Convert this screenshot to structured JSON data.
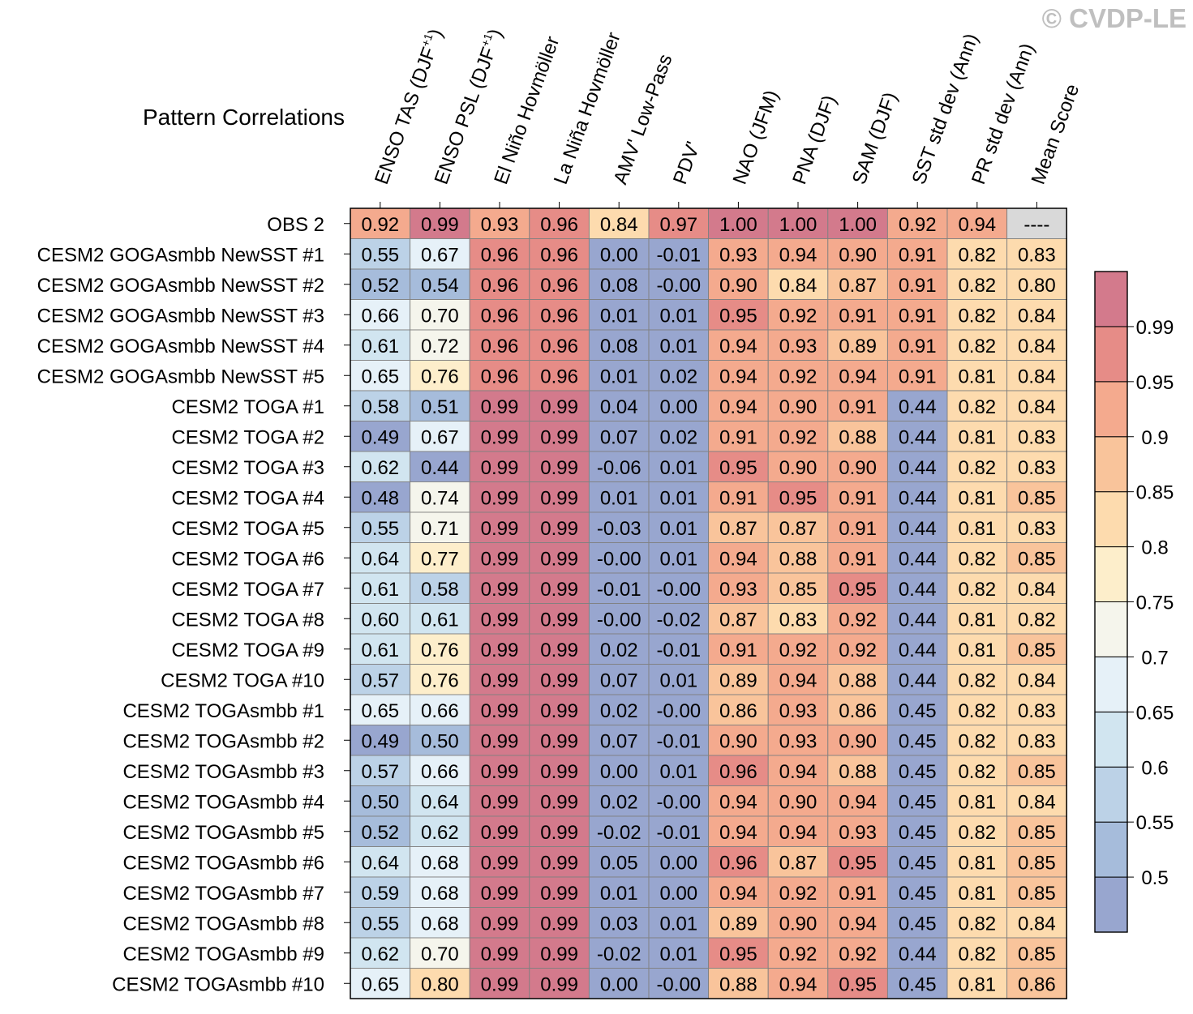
{
  "watermark": "© CVDP-LE",
  "chart_data": {
    "type": "heatmap",
    "title": "Pattern Correlations",
    "columns": [
      {
        "label": "ENSO TAS (DJF",
        "sup": "+1",
        "tail": ")"
      },
      {
        "label": "ENSO PSL (DJF",
        "sup": "+1",
        "tail": ")"
      },
      {
        "label": "El Niño Hovmöller"
      },
      {
        "label": "La Niña Hovmöller"
      },
      {
        "label": "AMV' Low-Pass"
      },
      {
        "label": "PDV'"
      },
      {
        "label": "NAO (JFM)"
      },
      {
        "label": "PNA (DJF)"
      },
      {
        "label": "SAM (DJF)"
      },
      {
        "label": "SST std dev (Ann)"
      },
      {
        "label": "PR std dev (Ann)"
      },
      {
        "label": "Mean Score"
      }
    ],
    "rows": [
      {
        "name": "OBS 2",
        "cells": [
          "0.92",
          "0.99",
          "0.93",
          "0.96",
          "0.84",
          "0.97",
          "1.00",
          "1.00",
          "1.00",
          "0.92",
          "0.94",
          "----"
        ]
      },
      {
        "name": "CESM2 GOGAsmbb NewSST #1",
        "cells": [
          "0.55",
          "0.67",
          "0.96",
          "0.96",
          "0.00",
          "-0.01",
          "0.93",
          "0.94",
          "0.90",
          "0.91",
          "0.82",
          "0.83"
        ]
      },
      {
        "name": "CESM2 GOGAsmbb NewSST #2",
        "cells": [
          "0.52",
          "0.54",
          "0.96",
          "0.96",
          "0.08",
          "-0.00",
          "0.90",
          "0.84",
          "0.87",
          "0.91",
          "0.82",
          "0.80"
        ]
      },
      {
        "name": "CESM2 GOGAsmbb NewSST #3",
        "cells": [
          "0.66",
          "0.70",
          "0.96",
          "0.96",
          "0.01",
          "0.01",
          "0.95",
          "0.92",
          "0.91",
          "0.91",
          "0.82",
          "0.84"
        ]
      },
      {
        "name": "CESM2 GOGAsmbb NewSST #4",
        "cells": [
          "0.61",
          "0.72",
          "0.96",
          "0.96",
          "0.08",
          "0.01",
          "0.94",
          "0.93",
          "0.89",
          "0.91",
          "0.82",
          "0.84"
        ]
      },
      {
        "name": "CESM2 GOGAsmbb NewSST #5",
        "cells": [
          "0.65",
          "0.76",
          "0.96",
          "0.96",
          "0.01",
          "0.02",
          "0.94",
          "0.92",
          "0.94",
          "0.91",
          "0.81",
          "0.84"
        ]
      },
      {
        "name": "CESM2 TOGA #1",
        "cells": [
          "0.58",
          "0.51",
          "0.99",
          "0.99",
          "0.04",
          "0.00",
          "0.94",
          "0.90",
          "0.91",
          "0.44",
          "0.82",
          "0.84"
        ]
      },
      {
        "name": "CESM2 TOGA #2",
        "cells": [
          "0.49",
          "0.67",
          "0.99",
          "0.99",
          "0.07",
          "0.02",
          "0.91",
          "0.92",
          "0.88",
          "0.44",
          "0.81",
          "0.83"
        ]
      },
      {
        "name": "CESM2 TOGA #3",
        "cells": [
          "0.62",
          "0.44",
          "0.99",
          "0.99",
          "-0.06",
          "0.01",
          "0.95",
          "0.90",
          "0.90",
          "0.44",
          "0.82",
          "0.83"
        ]
      },
      {
        "name": "CESM2 TOGA #4",
        "cells": [
          "0.48",
          "0.74",
          "0.99",
          "0.99",
          "0.01",
          "0.01",
          "0.91",
          "0.95",
          "0.91",
          "0.44",
          "0.81",
          "0.85"
        ]
      },
      {
        "name": "CESM2 TOGA #5",
        "cells": [
          "0.55",
          "0.71",
          "0.99",
          "0.99",
          "-0.03",
          "0.01",
          "0.87",
          "0.87",
          "0.91",
          "0.44",
          "0.81",
          "0.83"
        ]
      },
      {
        "name": "CESM2 TOGA #6",
        "cells": [
          "0.64",
          "0.77",
          "0.99",
          "0.99",
          "-0.00",
          "0.01",
          "0.94",
          "0.88",
          "0.91",
          "0.44",
          "0.82",
          "0.85"
        ]
      },
      {
        "name": "CESM2 TOGA #7",
        "cells": [
          "0.61",
          "0.58",
          "0.99",
          "0.99",
          "-0.01",
          "-0.00",
          "0.93",
          "0.85",
          "0.95",
          "0.44",
          "0.82",
          "0.84"
        ]
      },
      {
        "name": "CESM2 TOGA #8",
        "cells": [
          "0.60",
          "0.61",
          "0.99",
          "0.99",
          "-0.00",
          "-0.02",
          "0.87",
          "0.83",
          "0.92",
          "0.44",
          "0.81",
          "0.82"
        ]
      },
      {
        "name": "CESM2 TOGA #9",
        "cells": [
          "0.61",
          "0.76",
          "0.99",
          "0.99",
          "0.02",
          "-0.01",
          "0.91",
          "0.92",
          "0.92",
          "0.44",
          "0.81",
          "0.85"
        ]
      },
      {
        "name": "CESM2 TOGA #10",
        "cells": [
          "0.57",
          "0.76",
          "0.99",
          "0.99",
          "0.07",
          "0.01",
          "0.89",
          "0.94",
          "0.88",
          "0.44",
          "0.82",
          "0.84"
        ]
      },
      {
        "name": "CESM2 TOGAsmbb #1",
        "cells": [
          "0.65",
          "0.66",
          "0.99",
          "0.99",
          "0.02",
          "-0.00",
          "0.86",
          "0.93",
          "0.86",
          "0.45",
          "0.82",
          "0.83"
        ]
      },
      {
        "name": "CESM2 TOGAsmbb #2",
        "cells": [
          "0.49",
          "0.50",
          "0.99",
          "0.99",
          "0.07",
          "-0.01",
          "0.90",
          "0.93",
          "0.90",
          "0.45",
          "0.82",
          "0.83"
        ]
      },
      {
        "name": "CESM2 TOGAsmbb #3",
        "cells": [
          "0.57",
          "0.66",
          "0.99",
          "0.99",
          "0.00",
          "0.01",
          "0.96",
          "0.94",
          "0.88",
          "0.45",
          "0.82",
          "0.85"
        ]
      },
      {
        "name": "CESM2 TOGAsmbb #4",
        "cells": [
          "0.50",
          "0.64",
          "0.99",
          "0.99",
          "0.02",
          "-0.00",
          "0.94",
          "0.90",
          "0.94",
          "0.45",
          "0.81",
          "0.84"
        ]
      },
      {
        "name": "CESM2 TOGAsmbb #5",
        "cells": [
          "0.52",
          "0.62",
          "0.99",
          "0.99",
          "-0.02",
          "-0.01",
          "0.94",
          "0.94",
          "0.93",
          "0.45",
          "0.82",
          "0.85"
        ]
      },
      {
        "name": "CESM2 TOGAsmbb #6",
        "cells": [
          "0.64",
          "0.68",
          "0.99",
          "0.99",
          "0.05",
          "0.00",
          "0.96",
          "0.87",
          "0.95",
          "0.45",
          "0.81",
          "0.85"
        ]
      },
      {
        "name": "CESM2 TOGAsmbb #7",
        "cells": [
          "0.59",
          "0.68",
          "0.99",
          "0.99",
          "0.01",
          "0.00",
          "0.94",
          "0.92",
          "0.91",
          "0.45",
          "0.81",
          "0.85"
        ]
      },
      {
        "name": "CESM2 TOGAsmbb #8",
        "cells": [
          "0.55",
          "0.68",
          "0.99",
          "0.99",
          "0.03",
          "0.01",
          "0.89",
          "0.90",
          "0.94",
          "0.45",
          "0.82",
          "0.84"
        ]
      },
      {
        "name": "CESM2 TOGAsmbb #9",
        "cells": [
          "0.62",
          "0.70",
          "0.99",
          "0.99",
          "-0.02",
          "0.01",
          "0.95",
          "0.92",
          "0.92",
          "0.44",
          "0.82",
          "0.85"
        ]
      },
      {
        "name": "CESM2 TOGAsmbb #10",
        "cells": [
          "0.65",
          "0.80",
          "0.99",
          "0.99",
          "0.00",
          "-0.00",
          "0.88",
          "0.94",
          "0.95",
          "0.45",
          "0.81",
          "0.86"
        ]
      }
    ],
    "missing_color": "#d9d9d9",
    "colorbar": {
      "levels": [
        "0.5",
        "0.55",
        "0.6",
        "0.65",
        "0.7",
        "0.75",
        "0.8",
        "0.85",
        "0.9",
        "0.95",
        "0.99"
      ],
      "thresholds": [
        0.5,
        0.55,
        0.6,
        0.65,
        0.7,
        0.75,
        0.8,
        0.85,
        0.9,
        0.95,
        0.99
      ],
      "colors": [
        "#98a6cf",
        "#a6bcdb",
        "#bcd2e7",
        "#d1e5f0",
        "#e6f1f8",
        "#f5f5ec",
        "#fdeecb",
        "#fddbae",
        "#f9c49b",
        "#f4aa8e",
        "#e68c87",
        "#d37a8c"
      ],
      "placement": "right"
    }
  }
}
